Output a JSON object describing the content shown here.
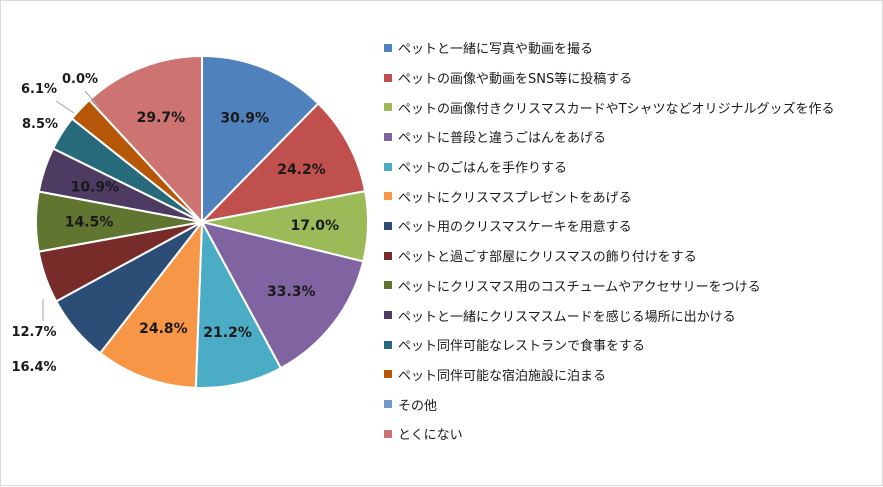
{
  "chart_data": {
    "type": "pie",
    "title": "",
    "slices": [
      {
        "name": "ペットと一緒に写真や動画を撮る",
        "value": 30.9,
        "label": "30.9%",
        "color": "#4f81bd"
      },
      {
        "name": "ペットの画像や動画をSNS等に投稿する",
        "value": 24.2,
        "label": "24.2%",
        "color": "#c0504d"
      },
      {
        "name": "ペットの画像付きクリスマスカードやTシャツなどオリジナルグッズを作る",
        "value": 17.0,
        "label": "17.0%",
        "color": "#9bbb59"
      },
      {
        "name": "ペットに普段と違うごはんをあげる",
        "value": 33.3,
        "label": "33.3%",
        "color": "#8064a2"
      },
      {
        "name": "ペットのごはんを手作りする",
        "value": 21.2,
        "label": "21.2%",
        "color": "#4bacc6"
      },
      {
        "name": "ペットにクリスマスプレゼントをあげる",
        "value": 24.8,
        "label": "24.8%",
        "color": "#f79646"
      },
      {
        "name": "ペット用のクリスマスケーキを用意する",
        "value": 16.4,
        "label": "16.4%",
        "color": "#2c4d75"
      },
      {
        "name": "ペットと過ごす部屋にクリスマスの飾り付けをする",
        "value": 12.7,
        "label": "12.7%",
        "color": "#772c2a"
      },
      {
        "name": "ペットにクリスマス用のコスチュームやアクセサリーをつける",
        "value": 14.5,
        "label": "14.5%",
        "color": "#5f7530"
      },
      {
        "name": "ペットと一緒にクリスマスムードを感じる場所に出かける",
        "value": 10.9,
        "label": "10.9%",
        "color": "#4d3b62"
      },
      {
        "name": "ペット同伴可能なレストランで食事をする",
        "value": 8.5,
        "label": "8.5%",
        "color": "#276a7c"
      },
      {
        "name": "ペット同伴可能な宿泊施設に泊まる",
        "value": 6.1,
        "label": "6.1%",
        "color": "#b65708"
      },
      {
        "name": "その他",
        "value": 0.0,
        "label": "0.0%",
        "color": "#729aca"
      },
      {
        "name": "とくにない",
        "value": 29.7,
        "label": "29.7%",
        "color": "#cd7371"
      }
    ],
    "legend_position": "right"
  }
}
